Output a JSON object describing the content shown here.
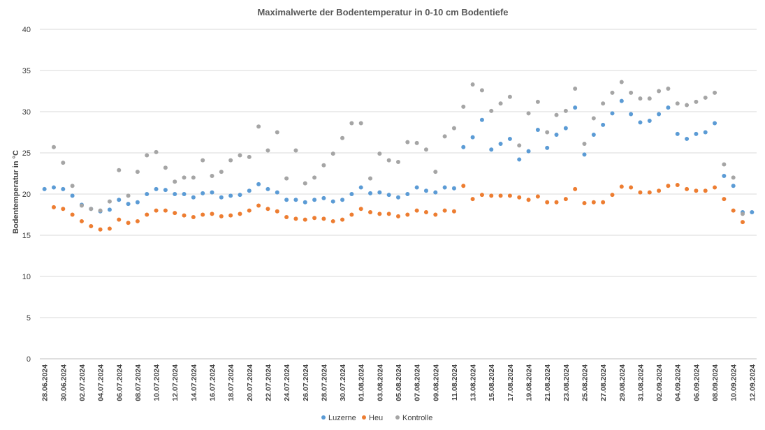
{
  "chart_data": {
    "type": "scatter",
    "title": "Maximalwerte der Bodentemperatur in 0-10 cm Bodentiefe",
    "xlabel": "",
    "ylabel": "Bodentemperatur in °C",
    "ylim": [
      0,
      40
    ],
    "yticks": [
      0,
      5,
      10,
      15,
      20,
      25,
      30,
      35,
      40
    ],
    "grid": true,
    "legend_position": "bottom",
    "x": [
      "28.06.2024",
      "29.06.2024",
      "30.06.2024",
      "01.07.2024",
      "02.07.2024",
      "03.07.2024",
      "04.07.2024",
      "05.07.2024",
      "06.07.2024",
      "07.07.2024",
      "08.07.2024",
      "09.07.2024",
      "10.07.2024",
      "11.07.2024",
      "12.07.2024",
      "13.07.2024",
      "14.07.2024",
      "15.07.2024",
      "16.07.2024",
      "17.07.2024",
      "18.07.2024",
      "19.07.2024",
      "20.07.2024",
      "21.07.2024",
      "22.07.2024",
      "23.07.2024",
      "24.07.2024",
      "25.07.2024",
      "26.07.2024",
      "27.07.2024",
      "28.07.2024",
      "29.07.2024",
      "30.07.2024",
      "31.07.2024",
      "01.08.2024",
      "02.08.2024",
      "03.08.2024",
      "04.08.2024",
      "05.08.2024",
      "06.08.2024",
      "07.08.2024",
      "08.08.2024",
      "09.08.2024",
      "10.08.2024",
      "11.08.2024",
      "12.08.2024",
      "13.08.2024",
      "14.08.2024",
      "15.08.2024",
      "16.08.2024",
      "17.08.2024",
      "18.08.2024",
      "19.08.2024",
      "20.08.2024",
      "21.08.2024",
      "22.08.2024",
      "23.08.2024",
      "24.08.2024",
      "25.08.2024",
      "26.08.2024",
      "27.08.2024",
      "28.08.2024",
      "29.08.2024",
      "30.08.2024",
      "31.08.2024",
      "01.09.2024",
      "02.09.2024",
      "03.09.2024",
      "04.09.2024",
      "05.09.2024",
      "06.09.2024",
      "07.09.2024",
      "08.09.2024",
      "09.09.2024",
      "10.09.2024",
      "11.09.2024",
      "12.09.2024"
    ],
    "x_tick_labels": [
      "28.06.2024",
      "30.06.2024",
      "02.07.2024",
      "04.07.2024",
      "06.07.2024",
      "08.07.2024",
      "10.07.2024",
      "12.07.2024",
      "14.07.2024",
      "16.07.2024",
      "18.07.2024",
      "20.07.2024",
      "22.07.2024",
      "24.07.2024",
      "26.07.2024",
      "28.07.2024",
      "30.07.2024",
      "01.08.2024",
      "03.08.2024",
      "05.08.2024",
      "07.08.2024",
      "09.08.2024",
      "11.08.2024",
      "13.08.2024",
      "15.08.2024",
      "17.08.2024",
      "19.08.2024",
      "21.08.2024",
      "23.08.2024",
      "25.08.2024",
      "27.08.2024",
      "29.08.2024",
      "31.08.2024",
      "02.09.2024",
      "04.09.2024",
      "06.09.2024",
      "08.09.2024",
      "10.09.2024",
      "12.09.2024"
    ],
    "series": [
      {
        "name": "Luzerne",
        "color": "#5B9BD5",
        "values": [
          20.6,
          20.8,
          20.6,
          19.8,
          18.7,
          18.2,
          17.9,
          18.1,
          19.3,
          18.8,
          19.0,
          20.0,
          20.6,
          20.5,
          20.0,
          20.0,
          19.6,
          20.1,
          20.2,
          19.6,
          19.8,
          19.9,
          20.4,
          21.2,
          20.6,
          20.2,
          19.3,
          19.3,
          19.0,
          19.3,
          19.5,
          19.1,
          19.3,
          20.0,
          20.8,
          20.1,
          20.2,
          19.9,
          19.6,
          20.0,
          20.8,
          20.4,
          20.2,
          20.8,
          20.7,
          25.7,
          26.9,
          29.0,
          25.4,
          26.1,
          26.7,
          24.2,
          25.2,
          27.8,
          25.6,
          27.2,
          28.0,
          30.5,
          24.8,
          27.2,
          28.4,
          29.8,
          31.3,
          29.7,
          28.7,
          28.9,
          29.7,
          30.5,
          27.3,
          26.7,
          27.3,
          27.5,
          28.6,
          22.2,
          21.0,
          17.8,
          17.8
        ]
      },
      {
        "name": "Heu",
        "color": "#ED7D31",
        "values": [
          null,
          18.4,
          18.2,
          17.5,
          16.7,
          16.1,
          15.7,
          15.8,
          16.9,
          16.5,
          16.7,
          17.5,
          18.0,
          18.0,
          17.7,
          17.4,
          17.2,
          17.5,
          17.6,
          17.3,
          17.4,
          17.6,
          18.0,
          18.6,
          18.2,
          17.9,
          17.2,
          17.0,
          16.9,
          17.1,
          17.0,
          16.7,
          16.9,
          17.5,
          18.2,
          17.8,
          17.6,
          17.6,
          17.3,
          17.5,
          18.0,
          17.8,
          17.5,
          18.0,
          17.9,
          21.0,
          19.4,
          19.9,
          19.8,
          19.8,
          19.8,
          19.6,
          19.3,
          19.7,
          19.0,
          19.0,
          19.4,
          20.6,
          18.9,
          19.0,
          19.0,
          19.9,
          20.9,
          20.8,
          20.2,
          20.2,
          20.4,
          21.0,
          21.1,
          20.6,
          20.4,
          20.4,
          20.8,
          19.4,
          18.0,
          16.6,
          null
        ]
      },
      {
        "name": "Kontrolle",
        "color": "#A5A5A5",
        "values": [
          null,
          25.7,
          23.8,
          21.0,
          18.6,
          18.2,
          18.0,
          19.1,
          22.9,
          19.8,
          22.7,
          24.7,
          25.1,
          23.2,
          21.5,
          22.0,
          22.0,
          24.1,
          22.2,
          22.7,
          24.1,
          24.7,
          24.5,
          28.2,
          25.3,
          27.5,
          21.9,
          25.3,
          21.3,
          22.0,
          23.5,
          24.9,
          26.8,
          28.6,
          28.6,
          21.9,
          24.9,
          24.1,
          23.9,
          26.3,
          26.2,
          25.4,
          22.7,
          27.0,
          28.0,
          30.6,
          33.3,
          32.6,
          30.1,
          31.0,
          31.8,
          25.9,
          29.8,
          31.2,
          27.5,
          29.6,
          30.1,
          32.8,
          26.1,
          29.2,
          31.0,
          32.3,
          33.6,
          32.3,
          31.6,
          31.6,
          32.5,
          32.8,
          31.0,
          30.8,
          31.2,
          31.7,
          32.3,
          23.6,
          22.0,
          17.6,
          null
        ]
      }
    ]
  }
}
